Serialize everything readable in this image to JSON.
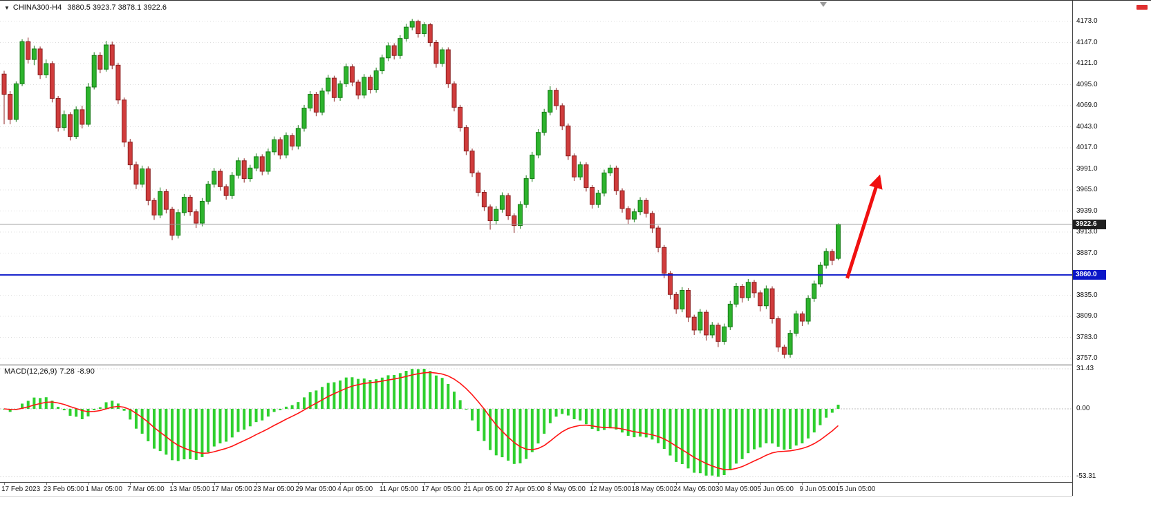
{
  "header": {
    "symbol": "CHINA300-H4",
    "ohlc": "3880.5 3923.7 3878.1 3922.6"
  },
  "badges": {
    "current_price": "3922.6",
    "hline_price": "3860.0"
  },
  "macd": {
    "name": "MACD(12,26,9)",
    "value_main": "7.28",
    "value_signal": "-8.90",
    "ticks": [
      "31.43",
      "0.00",
      "-53.31"
    ],
    "tick_values": [
      31.43,
      0,
      -53.31
    ]
  },
  "axis": {
    "price_tick_labels": [
      "4173.0",
      "4147.0",
      "4121.0",
      "4095.0",
      "4069.0",
      "4043.0",
      "4017.0",
      "3991.0",
      "3965.0",
      "3939.0",
      "3913.0",
      "3887.0",
      "3835.0",
      "3809.0",
      "3783.0",
      "3757.0"
    ]
  },
  "colors": {
    "bull": "#2db42d",
    "bull_border": "#157a15",
    "bear": "#d03c3c",
    "bear_border": "#8c1f1f",
    "macd_hist": "#2ed02e",
    "macd_signal": "#ff1414",
    "hline": "#0a16c8",
    "current_line": "#9a9a9a",
    "grid": "#dcdcdc",
    "badge_dark": "#1f1f1f",
    "badge_blue": "#0a16c8",
    "arrow": "#f01010"
  },
  "chart_data": {
    "type": "candlestick",
    "title": "CHINA300-H4",
    "symbol": "CHINA300",
    "timeframe": "H4",
    "price_range": [
      3757.0,
      4173.0
    ],
    "price_tick_step": 26.0,
    "current_price": 3922.6,
    "support_line": {
      "price": 3860.0,
      "color": "#0a16c8"
    },
    "last_bar": {
      "open": 3880.5,
      "high": 3923.7,
      "low": 3878.1,
      "close": 3922.6
    },
    "time_labels": [
      "17 Feb 2023",
      "23 Feb 05:00",
      "1 Mar 05:00",
      "7 Mar 05:00",
      "13 Mar 05:00",
      "17 Mar 05:00",
      "23 Mar 05:00",
      "29 Mar 05:00",
      "4 Apr 05:00",
      "11 Apr 05:00",
      "17 Apr 05:00",
      "21 Apr 05:00",
      "27 Apr 05:00",
      "8 May 05:00",
      "12 May 05:00",
      "18 May 05:00",
      "24 May 05:00",
      "30 May 05:00",
      "5 Jun 05:00",
      "9 Jun 05:00",
      "15 Jun 05:00"
    ],
    "bars_per_time_label": 7,
    "candles": [
      [
        4108,
        4112,
        4046,
        4083
      ],
      [
        4083,
        4087,
        4046,
        4052
      ],
      [
        4052,
        4099,
        4049,
        4096
      ],
      [
        4096,
        4151,
        4093,
        4148
      ],
      [
        4148,
        4153,
        4121,
        4126
      ],
      [
        4126,
        4143,
        4119,
        4139
      ],
      [
        4139,
        4142,
        4102,
        4107
      ],
      [
        4107,
        4126,
        4103,
        4121
      ],
      [
        4121,
        4124,
        4073,
        4078
      ],
      [
        4078,
        4081,
        4037,
        4042
      ],
      [
        4042,
        4063,
        4038,
        4058
      ],
      [
        4058,
        4061,
        4026,
        4031
      ],
      [
        4031,
        4068,
        4028,
        4064
      ],
      [
        4064,
        4069,
        4041,
        4046
      ],
      [
        4046,
        4097,
        4043,
        4092
      ],
      [
        4092,
        4135,
        4089,
        4131
      ],
      [
        4131,
        4135,
        4109,
        4114
      ],
      [
        4114,
        4149,
        4111,
        4144
      ],
      [
        4144,
        4148,
        4114,
        4119
      ],
      [
        4119,
        4122,
        4071,
        4076
      ],
      [
        4076,
        4079,
        4018,
        4024
      ],
      [
        4024,
        4028,
        3990,
        3996
      ],
      [
        3996,
        4000,
        3966,
        3972
      ],
      [
        3972,
        3995,
        3968,
        3991
      ],
      [
        3991,
        3994,
        3946,
        3952
      ],
      [
        3952,
        3955,
        3928,
        3934
      ],
      [
        3934,
        3968,
        3930,
        3963
      ],
      [
        3963,
        3966,
        3936,
        3941
      ],
      [
        3941,
        3944,
        3903,
        3909
      ],
      [
        3909,
        3941,
        3905,
        3937
      ],
      [
        3937,
        3960,
        3933,
        3956
      ],
      [
        3956,
        3959,
        3933,
        3938
      ],
      [
        3938,
        3941,
        3918,
        3924
      ],
      [
        3924,
        3955,
        3920,
        3951
      ],
      [
        3951,
        3976,
        3947,
        3972
      ],
      [
        3972,
        3992,
        3968,
        3988
      ],
      [
        3988,
        3991,
        3964,
        3969
      ],
      [
        3969,
        3972,
        3953,
        3958
      ],
      [
        3958,
        3987,
        3954,
        3983
      ],
      [
        3983,
        4005,
        3979,
        4001
      ],
      [
        4001,
        4004,
        3974,
        3979
      ],
      [
        3979,
        3996,
        3975,
        3992
      ],
      [
        3992,
        4010,
        3988,
        4006
      ],
      [
        4006,
        4009,
        3983,
        3988
      ],
      [
        3988,
        4016,
        3984,
        4012
      ],
      [
        4012,
        4031,
        4008,
        4027
      ],
      [
        4027,
        4030,
        4003,
        4008
      ],
      [
        4008,
        4036,
        4004,
        4032
      ],
      [
        4032,
        4035,
        4014,
        4019
      ],
      [
        4019,
        4045,
        4015,
        4041
      ],
      [
        4041,
        4070,
        4037,
        4066
      ],
      [
        4066,
        4087,
        4062,
        4083
      ],
      [
        4083,
        4086,
        4056,
        4061
      ],
      [
        4061,
        4091,
        4057,
        4087
      ],
      [
        4087,
        4107,
        4083,
        4103
      ],
      [
        4103,
        4106,
        4074,
        4079
      ],
      [
        4079,
        4100,
        4075,
        4096
      ],
      [
        4096,
        4121,
        4092,
        4117
      ],
      [
        4117,
        4120,
        4093,
        4098
      ],
      [
        4098,
        4101,
        4077,
        4082
      ],
      [
        4082,
        4108,
        4078,
        4104
      ],
      [
        4104,
        4107,
        4084,
        4089
      ],
      [
        4089,
        4116,
        4085,
        4112
      ],
      [
        4112,
        4132,
        4108,
        4128
      ],
      [
        4128,
        4147,
        4124,
        4143
      ],
      [
        4143,
        4146,
        4126,
        4131
      ],
      [
        4131,
        4156,
        4127,
        4152
      ],
      [
        4152,
        4170,
        4148,
        4166
      ],
      [
        4166,
        4176,
        4162,
        4173
      ],
      [
        4173,
        4175,
        4153,
        4158
      ],
      [
        4158,
        4172,
        4154,
        4169
      ],
      [
        4169,
        4171,
        4142,
        4147
      ],
      [
        4147,
        4150,
        4116,
        4121
      ],
      [
        4121,
        4141,
        4117,
        4138
      ],
      [
        4138,
        4141,
        4091,
        4096
      ],
      [
        4096,
        4099,
        4062,
        4067
      ],
      [
        4067,
        4070,
        4037,
        4042
      ],
      [
        4042,
        4045,
        4008,
        4013
      ],
      [
        4013,
        4016,
        3981,
        3986
      ],
      [
        3986,
        3989,
        3957,
        3962
      ],
      [
        3962,
        3965,
        3939,
        3944
      ],
      [
        3944,
        3947,
        3916,
        3927
      ],
      [
        3927,
        3945,
        3922,
        3941
      ],
      [
        3941,
        3962,
        3937,
        3958
      ],
      [
        3958,
        3961,
        3928,
        3933
      ],
      [
        3933,
        3936,
        3912,
        3921
      ],
      [
        3921,
        3951,
        3917,
        3947
      ],
      [
        3947,
        3983,
        3943,
        3979
      ],
      [
        3979,
        4012,
        3975,
        4008
      ],
      [
        4008,
        4040,
        4004,
        4036
      ],
      [
        4036,
        4065,
        4032,
        4061
      ],
      [
        4061,
        4093,
        4057,
        4088
      ],
      [
        4088,
        4091,
        4064,
        4069
      ],
      [
        4069,
        4072,
        4039,
        4044
      ],
      [
        4044,
        4047,
        4002,
        4007
      ],
      [
        4007,
        4010,
        3976,
        3981
      ],
      [
        3981,
        4000,
        3977,
        3996
      ],
      [
        3996,
        3999,
        3963,
        3968
      ],
      [
        3968,
        3971,
        3942,
        3947
      ],
      [
        3947,
        3965,
        3943,
        3961
      ],
      [
        3961,
        3990,
        3957,
        3986
      ],
      [
        3986,
        3996,
        3982,
        3992
      ],
      [
        3992,
        3995,
        3959,
        3964
      ],
      [
        3964,
        3967,
        3937,
        3942
      ],
      [
        3942,
        3945,
        3923,
        3929
      ],
      [
        3929,
        3942,
        3925,
        3938
      ],
      [
        3938,
        3956,
        3934,
        3952
      ],
      [
        3952,
        3955,
        3931,
        3936
      ],
      [
        3936,
        3939,
        3912,
        3918
      ],
      [
        3918,
        3921,
        3888,
        3894
      ],
      [
        3894,
        3897,
        3856,
        3862
      ],
      [
        3862,
        3865,
        3830,
        3836
      ],
      [
        3836,
        3839,
        3812,
        3818
      ],
      [
        3818,
        3845,
        3814,
        3841
      ],
      [
        3841,
        3844,
        3802,
        3808
      ],
      [
        3808,
        3811,
        3786,
        3792
      ],
      [
        3792,
        3818,
        3788,
        3814
      ],
      [
        3814,
        3817,
        3779,
        3786
      ],
      [
        3786,
        3802,
        3782,
        3798
      ],
      [
        3798,
        3801,
        3771,
        3778
      ],
      [
        3778,
        3800,
        3774,
        3796
      ],
      [
        3796,
        3828,
        3792,
        3824
      ],
      [
        3824,
        3850,
        3820,
        3846
      ],
      [
        3846,
        3849,
        3826,
        3832
      ],
      [
        3832,
        3855,
        3828,
        3851
      ],
      [
        3851,
        3854,
        3832,
        3838
      ],
      [
        3838,
        3841,
        3815,
        3822
      ],
      [
        3822,
        3847,
        3818,
        3843
      ],
      [
        3843,
        3846,
        3800,
        3806
      ],
      [
        3806,
        3809,
        3765,
        3771
      ],
      [
        3771,
        3774,
        3757,
        3762
      ],
      [
        3762,
        3792,
        3758,
        3788
      ],
      [
        3788,
        3816,
        3784,
        3812
      ],
      [
        3812,
        3815,
        3797,
        3803
      ],
      [
        3803,
        3835,
        3799,
        3831
      ],
      [
        3831,
        3853,
        3827,
        3849
      ],
      [
        3849,
        3876,
        3845,
        3872
      ],
      [
        3872,
        3893,
        3868,
        3889
      ],
      [
        3889,
        3892,
        3872,
        3878
      ],
      [
        3880.5,
        3923.7,
        3878.1,
        3922.6
      ]
    ],
    "macd_settings": {
      "fast": 12,
      "slow": 26,
      "signal": 9,
      "last_main": 7.28,
      "last_signal": -8.9,
      "axis_range": [
        -53.31,
        31.43
      ]
    },
    "arrow_annotation": {
      "from_bar": 140.5,
      "from_price": 3856,
      "to_bar": 145.8,
      "to_price": 3980,
      "color": "#f01010",
      "stroke_width": 5
    },
    "legend_position": "none",
    "grid": "dotted-horizontal"
  }
}
